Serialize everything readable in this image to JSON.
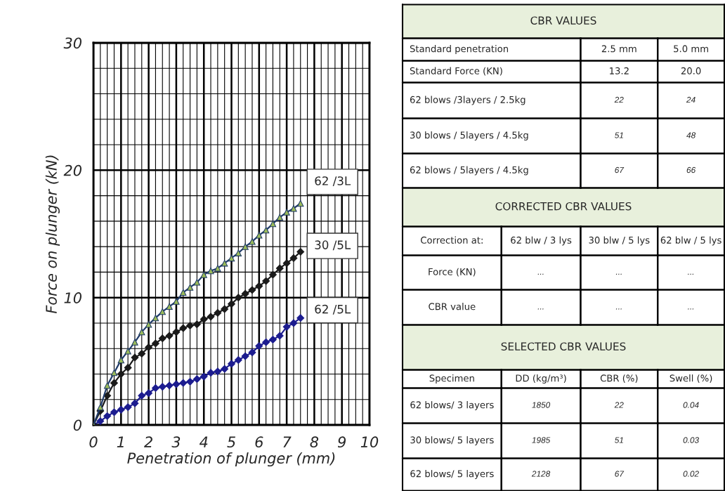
{
  "chart_data": [
    {
      "type": "line",
      "xlabel": "Penetration of plunger (mm)",
      "ylabel": "Force on plunger (kN)",
      "xlim": [
        0,
        10
      ],
      "ylim": [
        0,
        30
      ],
      "xticks": [
        0,
        1,
        2,
        3,
        4,
        5,
        6,
        7,
        8,
        9,
        10
      ],
      "yticks": [
        0,
        10,
        20,
        30
      ],
      "grid": true,
      "legend": false,
      "x": [
        0,
        0.25,
        0.5,
        0.75,
        1,
        1.25,
        1.5,
        1.75,
        2,
        2.25,
        2.5,
        2.75,
        3,
        3.25,
        3.5,
        3.75,
        4,
        4.25,
        4.5,
        4.75,
        5,
        5.25,
        5.5,
        5.75,
        6,
        6.25,
        6.5,
        6.75,
        7,
        7.25,
        7.5
      ],
      "series": [
        {
          "name": "62 /3L",
          "color": "#1f3a68",
          "marker": "triangle",
          "values": [
            0,
            1.4,
            3.1,
            4.1,
            5.1,
            5.8,
            6.5,
            7.3,
            7.9,
            8.4,
            8.9,
            9.3,
            9.7,
            10.4,
            10.8,
            11.2,
            11.8,
            12.1,
            12.3,
            12.7,
            13.1,
            13.5,
            14.0,
            14.4,
            14.9,
            15.3,
            15.8,
            16.3,
            16.7,
            17.0,
            17.4
          ]
        },
        {
          "name": "30 /5L",
          "color": "#1a1a1a",
          "marker": "diamond",
          "values": [
            0,
            1.1,
            2.3,
            3.3,
            4.0,
            4.5,
            5.3,
            5.6,
            6.1,
            6.4,
            6.8,
            7.0,
            7.3,
            7.6,
            7.8,
            7.9,
            8.3,
            8.5,
            8.8,
            9.1,
            9.5,
            10.0,
            10.3,
            10.6,
            10.9,
            11.3,
            11.8,
            12.3,
            12.7,
            13.1,
            13.6
          ]
        },
        {
          "name": "62 /5L",
          "color": "#1c1c8f",
          "marker": "diamond",
          "values": [
            0,
            0.3,
            0.7,
            1.0,
            1.2,
            1.4,
            1.7,
            2.3,
            2.5,
            2.9,
            3.0,
            3.1,
            3.2,
            3.3,
            3.4,
            3.6,
            3.8,
            4.1,
            4.2,
            4.4,
            4.8,
            5.1,
            5.4,
            5.7,
            6.2,
            6.5,
            6.7,
            7.0,
            7.7,
            8.0,
            8.4
          ]
        }
      ]
    },
    {
      "type": "other",
      "annotations": [
        "CBR VALUES",
        "Standard penetration",
        "2.5 mm",
        "5.0 mm",
        "Standard Force (KN)",
        "13.2",
        "20.0",
        "62 blows /3layers / 2.5kg",
        "22",
        "24",
        "30 blows / 5layers / 4.5kg",
        "51",
        "48",
        "62 blows / 5layers / 4.5kg",
        "67",
        "66",
        "CORRECTED CBR VALUES",
        "Correction at:",
        "62 blw / 3 lys",
        "30 blw / 5 lys",
        "62 blw / 5 lys",
        "Force (KN)",
        "...",
        "...",
        "...",
        "CBR value",
        "...",
        "...",
        "...",
        "SELECTED CBR VALUES",
        "Specimen",
        "DD (kg/m³)",
        "CBR (%)",
        "Swell (%)",
        "62 blows/ 3 layers",
        "1850",
        "22",
        "0.04",
        "30 blows/ 5 layers",
        "1985",
        "51",
        "0.03",
        "62 blows/ 5 layers",
        "2128",
        "67",
        "0.02"
      ]
    }
  ]
}
